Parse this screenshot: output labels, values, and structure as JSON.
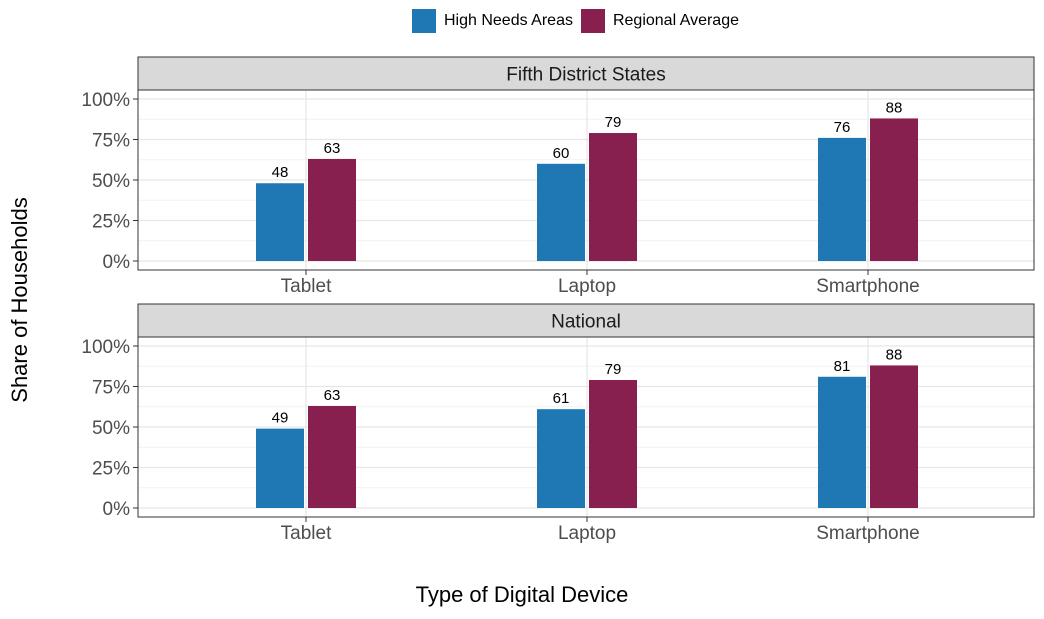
{
  "legend": [
    {
      "label": "High Needs Areas",
      "color": "#1F77B4"
    },
    {
      "label": "Regional Average",
      "color": "#87204F"
    }
  ],
  "chart_data": {
    "type": "bar",
    "xlabel": "Type of Digital Device",
    "ylabel": "Share of Households",
    "ylim": [
      0,
      100
    ],
    "y_ticks": [
      "0%",
      "25%",
      "50%",
      "75%",
      "100%"
    ],
    "y_tick_values": [
      0,
      25,
      50,
      75,
      100
    ],
    "grid": true,
    "legend_position": "top",
    "categories": [
      "Tablet",
      "Laptop",
      "Smartphone"
    ],
    "panels": [
      {
        "title": "Fifth District States",
        "series": [
          {
            "name": "High Needs Areas",
            "color": "#1F77B4",
            "values": [
              48,
              60,
              76
            ]
          },
          {
            "name": "Regional Average",
            "color": "#87204F",
            "values": [
              63,
              79,
              88
            ]
          }
        ]
      },
      {
        "title": "National",
        "series": [
          {
            "name": "High Needs Areas",
            "color": "#1F77B4",
            "values": [
              49,
              61,
              81
            ]
          },
          {
            "name": "Regional Average",
            "color": "#87204F",
            "values": [
              63,
              79,
              88
            ]
          }
        ]
      }
    ]
  }
}
